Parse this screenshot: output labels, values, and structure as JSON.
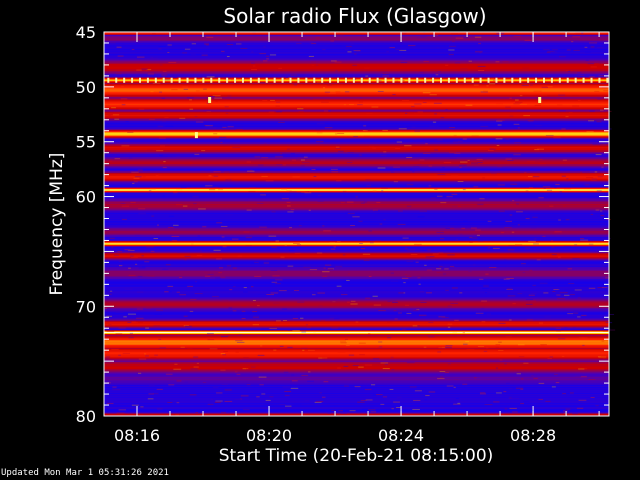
{
  "chart_data": {
    "type": "heatmap",
    "title": "Solar radio Flux (Glasgow)",
    "ylabel": "Frequency [MHz]",
    "xlabel": "Start Time (20-Feb-21 08:15:00)",
    "ylim": [
      45,
      80
    ],
    "y_inverted": true,
    "xlim_minutes": [
      0,
      15.3
    ],
    "x_ticks": [
      {
        "label": "08:16",
        "minute": 1
      },
      {
        "label": "08:20",
        "minute": 5
      },
      {
        "label": "08:24",
        "minute": 9
      },
      {
        "label": "08:28",
        "minute": 13
      }
    ],
    "y_ticks": [
      45,
      50,
      55,
      60,
      65,
      70,
      75,
      80
    ],
    "y_tick_labels": [
      "45",
      "50",
      "55",
      "60",
      "",
      "70",
      "",
      "80"
    ],
    "colormap": [
      "#0000ff",
      "#5500aa",
      "#cc0000",
      "#ff2200",
      "#ffcc00",
      "#ffffdd"
    ],
    "bands": [
      {
        "freq": 45.1,
        "intensity": 0.55,
        "width": 0.2
      },
      {
        "freq": 45.6,
        "intensity": 0.28,
        "width": 0.4
      },
      {
        "freq": 48.2,
        "intensity": 0.42,
        "width": 0.7
      },
      {
        "freq": 49.4,
        "intensity": 0.78,
        "width": 0.25
      },
      {
        "freq": 50.3,
        "intensity": 0.68,
        "width": 0.7
      },
      {
        "freq": 51.6,
        "intensity": 0.6,
        "width": 0.6
      },
      {
        "freq": 52.6,
        "intensity": 0.48,
        "width": 0.5
      },
      {
        "freq": 54.3,
        "intensity": 0.85,
        "width": 0.35
      },
      {
        "freq": 55.6,
        "intensity": 0.45,
        "width": 0.5
      },
      {
        "freq": 56.9,
        "intensity": 0.38,
        "width": 0.5
      },
      {
        "freq": 58.2,
        "intensity": 0.52,
        "width": 0.5
      },
      {
        "freq": 59.4,
        "intensity": 0.9,
        "width": 0.2
      },
      {
        "freq": 60.8,
        "intensity": 0.35,
        "width": 0.6
      },
      {
        "freq": 63.2,
        "intensity": 0.3,
        "width": 0.5
      },
      {
        "freq": 64.3,
        "intensity": 0.88,
        "width": 0.22
      },
      {
        "freq": 65.4,
        "intensity": 0.45,
        "width": 0.4
      },
      {
        "freq": 67.0,
        "intensity": 0.3,
        "width": 0.6
      },
      {
        "freq": 69.8,
        "intensity": 0.35,
        "width": 0.6
      },
      {
        "freq": 71.6,
        "intensity": 0.5,
        "width": 0.4
      },
      {
        "freq": 72.4,
        "intensity": 1.0,
        "width": 0.18
      },
      {
        "freq": 73.3,
        "intensity": 0.7,
        "width": 0.7
      },
      {
        "freq": 74.3,
        "intensity": 0.58,
        "width": 0.7
      },
      {
        "freq": 75.5,
        "intensity": 0.4,
        "width": 0.7
      },
      {
        "freq": 76.6,
        "intensity": 0.22,
        "width": 0.6
      },
      {
        "freq": 79.9,
        "intensity": 0.4,
        "width": 0.2
      }
    ],
    "bursts": [
      {
        "minute": 3.2,
        "freq": 51.2
      },
      {
        "minute": 2.8,
        "freq": 54.4
      },
      {
        "minute": 13.2,
        "freq": 51.2
      }
    ],
    "periodic_line": {
      "freq": 49.4,
      "step_minutes": 0.24
    }
  },
  "footer": {
    "updated": "Updated Mon Mar  1 05:31:26 2021"
  }
}
